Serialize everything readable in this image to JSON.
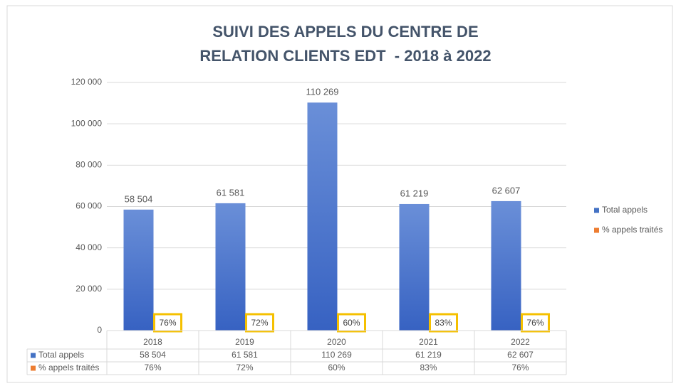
{
  "chart_data": {
    "type": "bar",
    "title": [
      "SUIVI DES APPELS DU CENTRE DE",
      "RELATION CLIENTS EDT  - 2018 à 2022"
    ],
    "categories": [
      "2018",
      "2019",
      "2020",
      "2021",
      "2022"
    ],
    "series": [
      {
        "name": "Total appels",
        "color": "#4472c4",
        "values": [
          58504,
          61581,
          110269,
          61219,
          62607
        ],
        "value_labels": [
          "58 504",
          "61 581",
          "110 269",
          "61 219",
          "62 607"
        ]
      },
      {
        "name": "% appels traités",
        "color": "#ed7d31",
        "values": [
          76,
          72,
          60,
          83,
          76
        ],
        "value_labels": [
          "76%",
          "72%",
          "60%",
          "83%",
          "76%"
        ]
      }
    ],
    "ylim": [
      0,
      120000
    ],
    "yticks": [
      0,
      {
        "value": 20000,
        "label": "20 000"
      },
      {
        "value": 40000,
        "label": "40 000"
      },
      {
        "value": 60000,
        "label": "60 000"
      },
      {
        "value": 80000,
        "label": "80 000"
      },
      {
        "value": 100000,
        "label": "100 000"
      },
      {
        "value": 120000,
        "label": "120 000"
      }
    ],
    "grid": true,
    "legend": "right",
    "data_table": true
  }
}
